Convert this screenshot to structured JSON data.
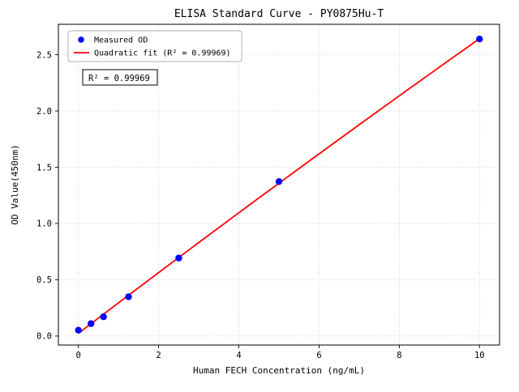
{
  "chart_data": {
    "type": "scatter",
    "title": "ELISA Standard Curve - PY0875Hu-T",
    "xlabel": "Human FECH Concentration (ng/mL)",
    "ylabel": "OD Value(450nm)",
    "xlim": [
      -0.5,
      10.5
    ],
    "ylim": [
      -0.08,
      2.77
    ],
    "x_ticks": [
      0,
      2,
      4,
      6,
      8,
      10
    ],
    "y_ticks": [
      0.0,
      0.5,
      1.0,
      1.5,
      2.0,
      2.5
    ],
    "grid": true,
    "legend_position": "upper-left",
    "series": [
      {
        "name": "Measured OD",
        "kind": "scatter",
        "color": "#0000ff",
        "x": [
          0,
          0.3125,
          0.625,
          1.25,
          2.5,
          5,
          10
        ],
        "y": [
          0.052,
          0.11,
          0.171,
          0.349,
          0.693,
          1.372,
          2.639
        ]
      },
      {
        "name": "Quadratic fit (R² = 0.99969)",
        "kind": "fit-line",
        "fit": "quadratic",
        "color": "#ff0000"
      }
    ],
    "annotation": {
      "text": "R² = 0.99969",
      "r_squared": 0.99969
    }
  }
}
